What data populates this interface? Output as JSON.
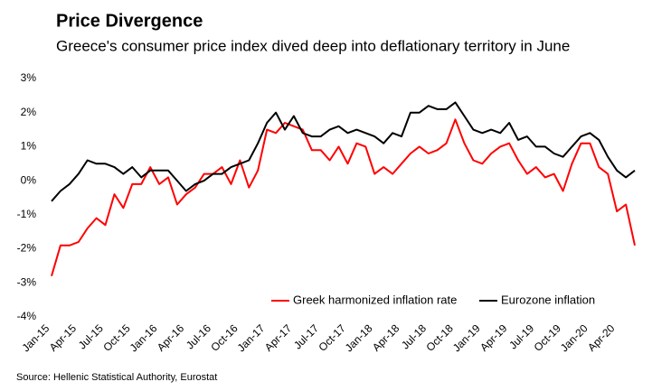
{
  "chart_data": {
    "type": "line",
    "title": "Price Divergence",
    "subtitle": "Greece's consumer price index dived deep into deflationary territory in June",
    "source": "Source: Hellenic Statistical Authority, Eurostat",
    "categories": [
      "Jan-15",
      null,
      null,
      "Apr-15",
      null,
      null,
      "Jul-15",
      null,
      null,
      "Oct-15",
      null,
      null,
      "Jan-16",
      null,
      null,
      "Apr-16",
      null,
      null,
      "Jul-16",
      null,
      null,
      "Oct-16",
      null,
      null,
      "Jan-17",
      null,
      null,
      "Apr-17",
      null,
      null,
      "Jul-17",
      null,
      null,
      "Oct-17",
      null,
      null,
      "Jan-18",
      null,
      null,
      "Apr-18",
      null,
      null,
      "Jul-18",
      null,
      null,
      "Oct-18",
      null,
      null,
      "Jan-19",
      null,
      null,
      "Apr-19",
      null,
      null,
      "Jul-19",
      null,
      null,
      "Oct-19",
      null,
      null,
      "Jan-20",
      null,
      null,
      "Apr-20",
      null,
      null
    ],
    "series": [
      {
        "name": "Greek harmonized inflation rate",
        "color": "#ff0000",
        "values": [
          -2.8,
          -1.9,
          -1.9,
          -1.8,
          -1.4,
          -1.1,
          -1.3,
          -0.4,
          -0.8,
          -0.1,
          -0.1,
          0.4,
          -0.1,
          0.1,
          -0.7,
          -0.4,
          -0.2,
          0.2,
          0.2,
          0.4,
          -0.1,
          0.6,
          -0.2,
          0.3,
          1.5,
          1.4,
          1.7,
          1.6,
          1.5,
          0.9,
          0.9,
          0.6,
          1.0,
          0.5,
          1.1,
          1.0,
          0.2,
          0.4,
          0.2,
          0.5,
          0.8,
          1.0,
          0.8,
          0.9,
          1.1,
          1.8,
          1.1,
          0.6,
          0.5,
          0.8,
          1.0,
          1.1,
          0.6,
          0.2,
          0.4,
          0.1,
          0.2,
          -0.3,
          0.5,
          1.1,
          1.1,
          0.4,
          0.2,
          -0.9,
          -0.7,
          -1.9
        ]
      },
      {
        "name": "Eurozone inflation",
        "color": "#000000",
        "values": [
          -0.6,
          -0.3,
          -0.1,
          0.2,
          0.6,
          0.5,
          0.5,
          0.4,
          0.2,
          0.4,
          0.1,
          0.3,
          0.3,
          0.3,
          0.0,
          -0.3,
          -0.1,
          0.0,
          0.2,
          0.2,
          0.4,
          0.5,
          0.6,
          1.1,
          1.7,
          2.0,
          1.5,
          1.9,
          1.4,
          1.3,
          1.3,
          1.5,
          1.6,
          1.4,
          1.5,
          1.4,
          1.3,
          1.1,
          1.4,
          1.3,
          2.0,
          2.0,
          2.2,
          2.1,
          2.1,
          2.3,
          1.9,
          1.5,
          1.4,
          1.5,
          1.4,
          1.7,
          1.2,
          1.3,
          1.0,
          1.0,
          0.8,
          0.7,
          1.0,
          1.3,
          1.4,
          1.2,
          0.7,
          0.3,
          0.1,
          0.3
        ]
      }
    ],
    "ylim": [
      -4,
      3
    ],
    "yticks": [
      {
        "value": -4,
        "label": "-4%"
      },
      {
        "value": -3,
        "label": "-3%"
      },
      {
        "value": -2,
        "label": "-2%"
      },
      {
        "value": -1,
        "label": "-1%"
      },
      {
        "value": 0,
        "label": "0%"
      },
      {
        "value": 1,
        "label": "1%"
      },
      {
        "value": 2,
        "label": "2%"
      },
      {
        "value": 3,
        "label": "3%"
      }
    ],
    "grid": false,
    "legend": "bottom"
  }
}
